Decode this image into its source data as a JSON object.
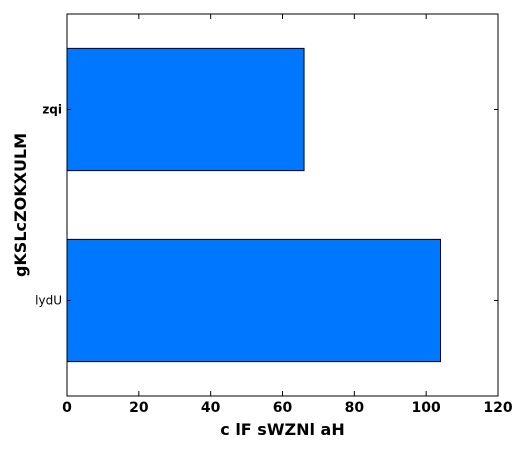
{
  "chart_data": {
    "type": "bar",
    "orientation": "horizontal",
    "categories": [
      "lydU",
      "zqi"
    ],
    "category_label_weight": [
      "normal",
      "bold"
    ],
    "values": [
      104,
      66
    ],
    "title": "",
    "xlabel": "c lF sWZNl aH",
    "ylabel": "gKSLcZOKXULM",
    "xlim": [
      0,
      120
    ],
    "xticks": [
      0,
      20,
      40,
      60,
      80,
      100,
      120
    ],
    "bar_color": "#0077ff",
    "edge_color": "#000000",
    "grid": false,
    "legend": "none"
  }
}
